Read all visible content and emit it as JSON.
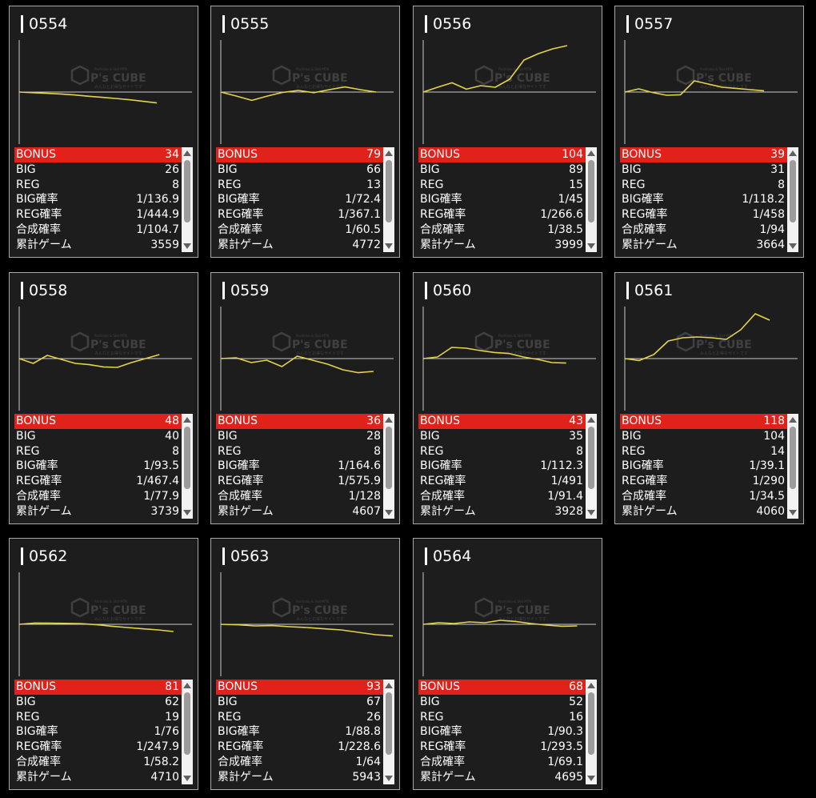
{
  "labels": {
    "bonus": "BONUS",
    "big": "BIG",
    "reg": "REG",
    "big_prob": "BIG確率",
    "reg_prob": "REG確率",
    "total_prob": "合成確率",
    "games": "累計ゲーム"
  },
  "watermark": {
    "small": "Pachinko & Slot MTN",
    "brand": "P's CUBE",
    "sub": "みんなとお得なサイトです"
  },
  "colors": {
    "panel": "#1d1d1d",
    "border": "#a8a8a8",
    "bonus_row": "#e0221a",
    "line": "#e4d44a",
    "axis": "#cccccc"
  },
  "machines": [
    {
      "id": "0554",
      "bonus": "34",
      "big": "26",
      "reg": "8",
      "big_prob": "1/136.9",
      "reg_prob": "1/444.9",
      "total_prob": "1/104.7",
      "games": "3559"
    },
    {
      "id": "0555",
      "bonus": "79",
      "big": "66",
      "reg": "13",
      "big_prob": "1/72.4",
      "reg_prob": "1/367.1",
      "total_prob": "1/60.5",
      "games": "4772"
    },
    {
      "id": "0556",
      "bonus": "104",
      "big": "89",
      "reg": "15",
      "big_prob": "1/45",
      "reg_prob": "1/266.6",
      "total_prob": "1/38.5",
      "games": "3999"
    },
    {
      "id": "0557",
      "bonus": "39",
      "big": "31",
      "reg": "8",
      "big_prob": "1/118.2",
      "reg_prob": "1/458",
      "total_prob": "1/94",
      "games": "3664"
    },
    {
      "id": "0558",
      "bonus": "48",
      "big": "40",
      "reg": "8",
      "big_prob": "1/93.5",
      "reg_prob": "1/467.4",
      "total_prob": "1/77.9",
      "games": "3739"
    },
    {
      "id": "0559",
      "bonus": "36",
      "big": "28",
      "reg": "8",
      "big_prob": "1/164.6",
      "reg_prob": "1/575.9",
      "total_prob": "1/128",
      "games": "4607"
    },
    {
      "id": "0560",
      "bonus": "43",
      "big": "35",
      "reg": "8",
      "big_prob": "1/112.3",
      "reg_prob": "1/491",
      "total_prob": "1/91.4",
      "games": "3928"
    },
    {
      "id": "0561",
      "bonus": "118",
      "big": "104",
      "reg": "14",
      "big_prob": "1/39.1",
      "reg_prob": "1/290",
      "total_prob": "1/34.5",
      "games": "4060"
    },
    {
      "id": "0562",
      "bonus": "81",
      "big": "62",
      "reg": "19",
      "big_prob": "1/76",
      "reg_prob": "1/247.9",
      "total_prob": "1/58.2",
      "games": "4710"
    },
    {
      "id": "0563",
      "bonus": "93",
      "big": "67",
      "reg": "26",
      "big_prob": "1/88.8",
      "reg_prob": "1/228.6",
      "total_prob": "1/64",
      "games": "5943"
    },
    {
      "id": "0564",
      "bonus": "68",
      "big": "52",
      "reg": "16",
      "big_prob": "1/90.3",
      "reg_prob": "1/293.5",
      "total_prob": "1/69.1",
      "games": "4695"
    }
  ],
  "chart_data": [
    {
      "type": "line",
      "title": "0554",
      "x": [
        0,
        0.1,
        0.2,
        0.3,
        0.4,
        0.5,
        0.6,
        0.7,
        0.8,
        0.9,
        1
      ],
      "y": [
        0,
        -400,
        -800,
        -1200,
        -1800,
        -2600,
        -3300,
        -4000,
        -4800,
        -5800,
        -6800
      ],
      "ylim": [
        -30000,
        30000
      ]
    },
    {
      "type": "line",
      "title": "0555",
      "x": [
        0,
        0.1,
        0.2,
        0.3,
        0.4,
        0.5,
        0.6,
        0.7,
        0.8,
        0.9,
        1
      ],
      "y": [
        0,
        -2500,
        -5200,
        -2500,
        -200,
        1000,
        -400,
        1500,
        3200,
        1500,
        0
      ],
      "ylim": [
        -30000,
        30000
      ]
    },
    {
      "type": "line",
      "title": "0556",
      "x": [
        0,
        0.1,
        0.2,
        0.3,
        0.4,
        0.5,
        0.6,
        0.7,
        0.8,
        0.9,
        1
      ],
      "y": [
        0,
        3000,
        5800,
        1800,
        4000,
        3000,
        8000,
        20000,
        24000,
        27000,
        29000
      ],
      "ylim": [
        -30000,
        30000
      ]
    },
    {
      "type": "line",
      "title": "0557",
      "x": [
        0,
        0.1,
        0.2,
        0.3,
        0.4,
        0.5,
        0.6,
        0.7,
        0.8,
        0.9,
        1
      ],
      "y": [
        0,
        2000,
        -300,
        -2000,
        -1700,
        7000,
        5000,
        3000,
        2300,
        1500,
        800
      ],
      "ylim": [
        -30000,
        30000
      ]
    },
    {
      "type": "line",
      "title": "0558",
      "x": [
        0,
        0.1,
        0.2,
        0.3,
        0.4,
        0.5,
        0.6,
        0.7,
        0.8,
        0.9,
        1
      ],
      "y": [
        0,
        -3000,
        2000,
        -500,
        -3000,
        -3800,
        -5200,
        -5500,
        -2500,
        0,
        2500
      ],
      "ylim": [
        -30000,
        30000
      ]
    },
    {
      "type": "line",
      "title": "0559",
      "x": [
        0,
        0.1,
        0.2,
        0.3,
        0.4,
        0.5,
        0.6,
        0.7,
        0.8,
        0.9,
        1
      ],
      "y": [
        0,
        500,
        -2500,
        -1000,
        -5000,
        1500,
        -1000,
        -3500,
        -7000,
        -8800,
        -8000
      ],
      "ylim": [
        -30000,
        30000
      ]
    },
    {
      "type": "line",
      "title": "0560",
      "x": [
        0,
        0.1,
        0.2,
        0.3,
        0.4,
        0.5,
        0.6,
        0.7,
        0.8,
        0.9,
        1
      ],
      "y": [
        0,
        1000,
        7000,
        6500,
        5000,
        3800,
        3200,
        1000,
        -500,
        -2500,
        -2800
      ],
      "ylim": [
        -30000,
        30000
      ]
    },
    {
      "type": "line",
      "title": "0561",
      "x": [
        0,
        0.1,
        0.2,
        0.3,
        0.4,
        0.5,
        0.6,
        0.7,
        0.8,
        0.9,
        1
      ],
      "y": [
        0,
        -1200,
        2500,
        11000,
        13000,
        13500,
        13000,
        12000,
        18000,
        28000,
        24000
      ],
      "ylim": [
        -30000,
        30000
      ]
    },
    {
      "type": "line",
      "title": "0562",
      "x": [
        0,
        0.1,
        0.2,
        0.3,
        0.4,
        0.5,
        0.6,
        0.7,
        0.8,
        0.9,
        1
      ],
      "y": [
        0,
        800,
        700,
        600,
        400,
        -200,
        -1200,
        -2000,
        -2800,
        -3500,
        -4500
      ],
      "ylim": [
        -30000,
        30000
      ]
    },
    {
      "type": "line",
      "title": "0563",
      "x": [
        0,
        0.1,
        0.2,
        0.3,
        0.4,
        0.5,
        0.6,
        0.7,
        0.8,
        0.9,
        1
      ],
      "y": [
        0,
        -300,
        -1000,
        -800,
        -1500,
        -2000,
        -2800,
        -3500,
        -5000,
        -6500,
        -7200
      ],
      "ylim": [
        -30000,
        30000
      ]
    },
    {
      "type": "line",
      "title": "0564",
      "x": [
        0,
        0.1,
        0.2,
        0.3,
        0.4,
        0.5,
        0.6,
        0.7,
        0.8,
        0.9,
        1
      ],
      "y": [
        0,
        1000,
        500,
        1500,
        1000,
        2500,
        1800,
        500,
        -500,
        -1200,
        -1000
      ],
      "ylim": [
        -30000,
        30000
      ]
    }
  ]
}
